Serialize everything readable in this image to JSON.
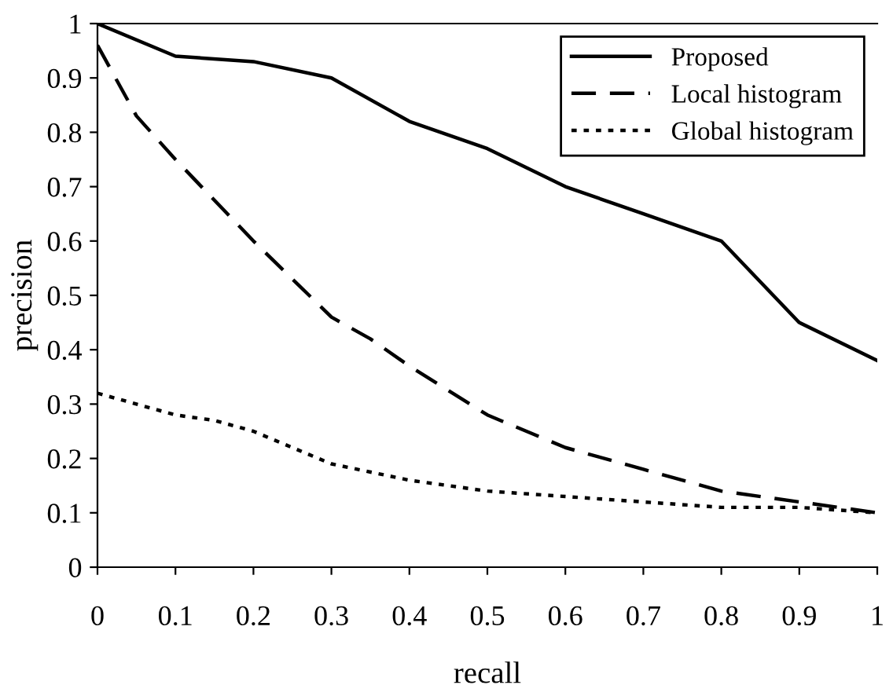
{
  "chart_data": {
    "type": "line",
    "xlabel": "recall",
    "ylabel": "precision",
    "series": [
      {
        "name": "Proposed",
        "color": "#000000",
        "line_style": "solid",
        "x": [
          0,
          0.1,
          0.2,
          0.3,
          0.4,
          0.5,
          0.6,
          0.7,
          0.8,
          0.9,
          1
        ],
        "values": [
          1,
          0.94,
          0.93,
          0.9,
          0.82,
          0.77,
          0.7,
          0.65,
          0.6,
          0.45,
          0.38
        ]
      },
      {
        "name": "Local histogram",
        "color": "#000000",
        "line_style": "dashed",
        "x": [
          0,
          0.05,
          0.1,
          0.2,
          0.3,
          0.35,
          0.4,
          0.5,
          0.6,
          0.7,
          0.8,
          0.9,
          1
        ],
        "values": [
          0.96,
          0.83,
          0.75,
          0.6,
          0.46,
          0.42,
          0.37,
          0.28,
          0.22,
          0.18,
          0.14,
          0.12,
          0.1
        ]
      },
      {
        "name": "Global histogram",
        "color": "#000000",
        "line_style": "dotted",
        "x": [
          0,
          0.1,
          0.15,
          0.2,
          0.3,
          0.4,
          0.5,
          0.6,
          0.7,
          0.8,
          0.9,
          1
        ],
        "values": [
          0.32,
          0.28,
          0.27,
          0.25,
          0.19,
          0.16,
          0.14,
          0.13,
          0.12,
          0.11,
          0.11,
          0.1
        ]
      }
    ],
    "xlim": [
      0,
      1
    ],
    "ylim": [
      0,
      1
    ],
    "xticks": [
      0,
      0.1,
      0.2,
      0.3,
      0.4,
      0.5,
      0.6,
      0.7,
      0.8,
      0.9,
      1
    ],
    "yticks": [
      0,
      0.1,
      0.2,
      0.3,
      0.4,
      0.5,
      0.6,
      0.7,
      0.8,
      0.9,
      1
    ],
    "grid": false,
    "legend": "top right",
    "marker": "none"
  }
}
